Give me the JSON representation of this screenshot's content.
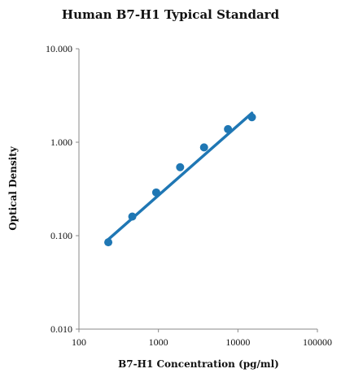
{
  "chart_data": {
    "type": "scatter",
    "title": "Human B7-H1 Typical Standard",
    "xlabel": "B7-H1 Concentration (pg/ml)",
    "ylabel": "Optical Density",
    "x_scale": "log",
    "y_scale": "log",
    "xlim": [
      100,
      100000
    ],
    "ylim": [
      0.01,
      10
    ],
    "x_ticks": [
      "100",
      "1000",
      "10000",
      "100000"
    ],
    "x_tick_values": [
      100,
      1000,
      10000,
      100000
    ],
    "y_ticks": [
      "10.000",
      "1.000",
      "0.100",
      "0.010"
    ],
    "y_tick_values": [
      10,
      1,
      0.1,
      0.01
    ],
    "grid": false,
    "legend": "none",
    "points": [
      {
        "x": 234,
        "y": 0.085
      },
      {
        "x": 469,
        "y": 0.16
      },
      {
        "x": 938,
        "y": 0.29
      },
      {
        "x": 1875,
        "y": 0.54
      },
      {
        "x": 3750,
        "y": 0.88
      },
      {
        "x": 7500,
        "y": 1.38
      },
      {
        "x": 15000,
        "y": 1.85
      }
    ],
    "trendline": {
      "x": [
        220,
        15000
      ],
      "y": [
        0.087,
        2.05
      ]
    },
    "color": "#1f77b4"
  }
}
